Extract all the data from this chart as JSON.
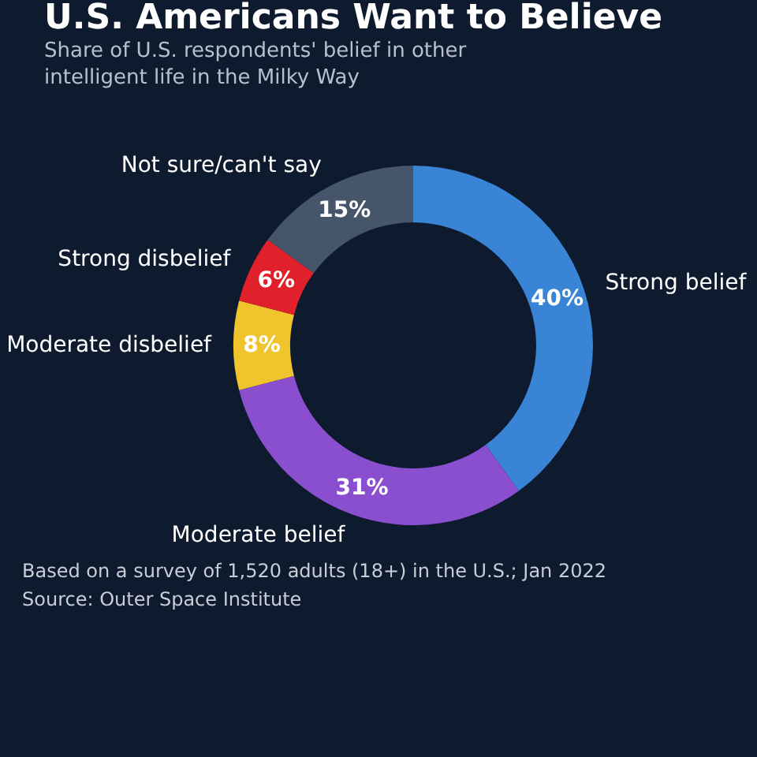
{
  "chart_data": {
    "type": "donut",
    "title": "U.S. Americans Want to Believe",
    "subtitle": "Share of U.S. respondents' belief in other intelligent life in the Milky Way",
    "categories": [
      "Strong belief",
      "Moderate belief",
      "Moderate disbelief",
      "Strong disbelief",
      "Not sure/can't say"
    ],
    "values": [
      40,
      31,
      8,
      6,
      15
    ],
    "colors": [
      "#3a84d6",
      "#8a4fcf",
      "#f0c42c",
      "#e0202a",
      "#46566a"
    ],
    "value_labels": [
      "40%",
      "31%",
      "8%",
      "6%",
      "15%"
    ],
    "legend": false,
    "annotations": [
      "Based on a survey of 1,520 adults (18+) in the U.S.; Jan 2022",
      "Source: Outer Space Institute"
    ]
  }
}
